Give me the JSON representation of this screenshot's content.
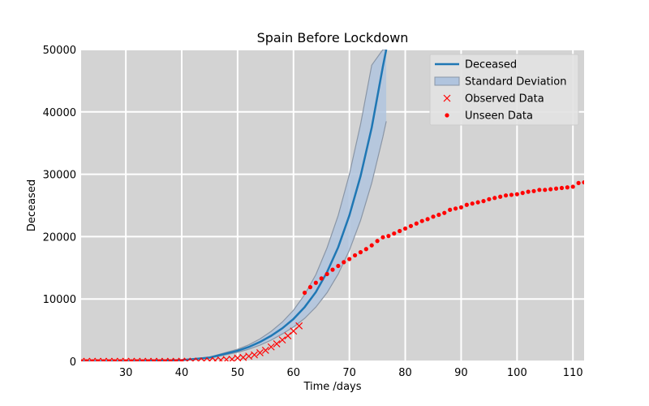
{
  "chart_data": {
    "type": "line",
    "title": "Spain Before Lockdown",
    "xlabel": "Time /days",
    "ylabel": "Deceased",
    "xlim": [
      22,
      112
    ],
    "ylim": [
      0,
      50000
    ],
    "xticks": [
      30,
      40,
      50,
      60,
      70,
      80,
      90,
      100,
      110
    ],
    "yticks": [
      0,
      10000,
      20000,
      30000,
      40000,
      50000
    ],
    "grid": true,
    "legend_position": "top-right",
    "colors": {
      "background": "#d3d3d3",
      "grid": "#ffffff",
      "model_line": "#1f77b4",
      "band_fill": "#b0c4de",
      "band_edge": "#8a96a6",
      "observed": "#ff0000",
      "unseen": "#ff0000"
    },
    "legend": [
      {
        "label": "Deceased",
        "marker": "line"
      },
      {
        "label": "Standard Deviation",
        "marker": "patch"
      },
      {
        "label": "Observed Data",
        "marker": "x"
      },
      {
        "label": "Unseen Data",
        "marker": "dot"
      }
    ],
    "series": [
      {
        "name": "Deceased",
        "x": [
          22,
          30,
          40,
          45,
          50,
          52,
          54,
          56,
          58,
          60,
          62,
          64,
          66,
          68,
          70,
          72,
          74,
          76,
          76.6
        ],
        "y": [
          0,
          0,
          200,
          600,
          1700,
          2300,
          3100,
          4100,
          5300,
          6800,
          8700,
          11100,
          14300,
          18300,
          23400,
          29700,
          37500,
          47300,
          50000
        ],
        "upper": [
          0,
          0,
          230,
          690,
          1950,
          2650,
          3600,
          4800,
          6300,
          8200,
          10700,
          13900,
          18200,
          23400,
          30000,
          38000,
          47500,
          50000,
          50000
        ],
        "lower": [
          0,
          0,
          170,
          520,
          1450,
          1950,
          2600,
          3400,
          4400,
          5500,
          6900,
          8700,
          11000,
          14000,
          17800,
          22600,
          28600,
          36000,
          38500
        ]
      },
      {
        "name": "Observed Data",
        "x": [
          22,
          23,
          24,
          25,
          26,
          27,
          28,
          29,
          30,
          31,
          32,
          33,
          34,
          35,
          36,
          37,
          38,
          39,
          40,
          41,
          42,
          43,
          44,
          45,
          46,
          47,
          48,
          49,
          50,
          51,
          52,
          53,
          54,
          55,
          56,
          57,
          58,
          59,
          60,
          61
        ],
        "y": [
          0,
          0,
          0,
          0,
          0,
          0,
          0,
          0,
          0,
          0,
          0,
          0,
          0,
          0,
          0,
          0,
          0,
          0,
          2,
          10,
          17,
          35,
          48,
          84,
          136,
          198,
          289,
          342,
          533,
          623,
          830,
          1043,
          1375,
          1772,
          2311,
          2808,
          3434,
          4089,
          4858,
          5690
        ]
      },
      {
        "name": "Unseen Data",
        "x": [
          22,
          23,
          24,
          25,
          26,
          27,
          28,
          29,
          30,
          31,
          32,
          33,
          34,
          35,
          36,
          37,
          38,
          39,
          40,
          62,
          63,
          64,
          65,
          66,
          67,
          68,
          69,
          70,
          71,
          72,
          73,
          74,
          75,
          76,
          77,
          78,
          79,
          80,
          81,
          82,
          83,
          84,
          85,
          86,
          87,
          88,
          89,
          90,
          91,
          92,
          93,
          94,
          95,
          96,
          97,
          98,
          99,
          100,
          101,
          102,
          103,
          104,
          105,
          106,
          107,
          108,
          109,
          110,
          111,
          112
        ],
        "y": [
          0,
          0,
          0,
          0,
          0,
          0,
          0,
          0,
          0,
          0,
          0,
          0,
          0,
          0,
          0,
          0,
          0,
          0,
          0,
          11000,
          11900,
          12600,
          13300,
          14000,
          14700,
          15300,
          15900,
          16400,
          17000,
          17500,
          18000,
          18600,
          19300,
          19900,
          20100,
          20500,
          20900,
          21300,
          21700,
          22100,
          22500,
          22800,
          23200,
          23500,
          23800,
          24300,
          24500,
          24700,
          25100,
          25300,
          25500,
          25700,
          26000,
          26200,
          26400,
          26600,
          26700,
          26800,
          27000,
          27200,
          27300,
          27500,
          27500,
          27600,
          27700,
          27800,
          27900,
          28000,
          28600,
          28700
        ]
      }
    ]
  }
}
